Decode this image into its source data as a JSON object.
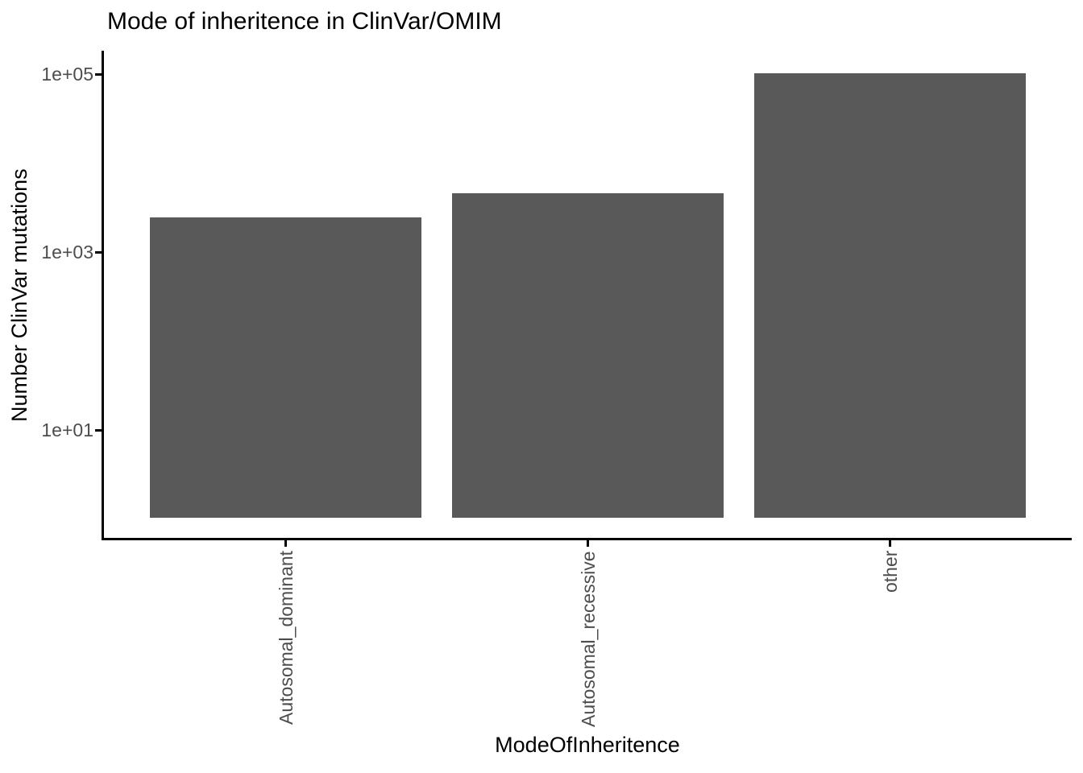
{
  "title": "Mode of inheritence in ClinVar/OMIM",
  "colors": {
    "bar_fill": "#595959",
    "axis_text": "#4d4d4d",
    "axis_line": "#000000",
    "title_text": "#000000",
    "background": "#ffffff"
  },
  "chart_data": {
    "type": "bar",
    "title": "Mode of inheritence in ClinVar/OMIM",
    "xlabel": "ModeOfInheritence",
    "ylabel": "Number ClinVar mutations",
    "categories": [
      "Autosomal_dominant",
      "Autosomal_recessive",
      "other"
    ],
    "values": [
      2450,
      4600,
      102000
    ],
    "y_scale": "log10",
    "y_ticks": [
      {
        "label": "1e+01",
        "value": 10
      },
      {
        "label": "1e+03",
        "value": 1000
      },
      {
        "label": "1e+05",
        "value": 100000
      }
    ],
    "ylim_approx": [
      0.6,
      180000
    ],
    "bar_baseline": 1,
    "grid": "off",
    "legend": "none"
  }
}
